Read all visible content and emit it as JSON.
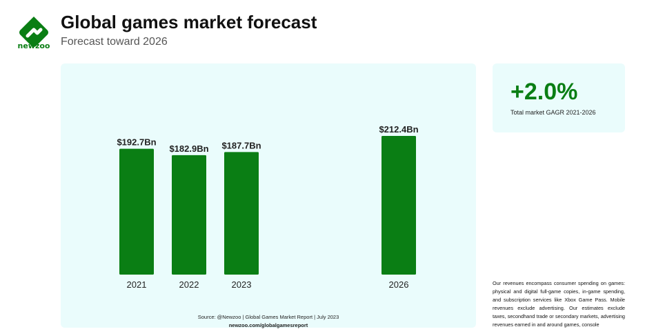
{
  "brand": {
    "name": "newzoo",
    "color": "#0a7e14"
  },
  "header": {
    "title": "Global games market forecast",
    "subtitle": "Forecast toward 2026"
  },
  "cagr": {
    "value": "+2.0%",
    "label": "Total market GAGR 2021-2026"
  },
  "source": {
    "line1": "Source: @Newzoo | Global Games Market Report | July 2023",
    "line2": "newzoo.com/globalgamesreport"
  },
  "note": "Our revenues encompass consumer spending on games: physical and digital full-game copies, in-game spending, and subscription services like Xbox Game Pass. Mobile revenues exclude advertising. Our estimates exclude taxes, secondhand trade or secondary markets, advertising revenues earned in and around games, console",
  "chart_data": {
    "type": "bar",
    "title": "Global games market forecast",
    "subtitle": "Forecast toward 2026",
    "categories": [
      "2021",
      "2022",
      "2023",
      "2026"
    ],
    "values": [
      192.7,
      182.9,
      187.7,
      212.4
    ],
    "value_labels": [
      "$192.7Bn",
      "$182.9Bn",
      "$187.7Bn",
      "$212.4Bn"
    ],
    "unit": "Bn USD",
    "bar_color": "#0a7e14",
    "ylim": [
      0,
      212.4
    ],
    "grid": false,
    "legend": "none"
  }
}
